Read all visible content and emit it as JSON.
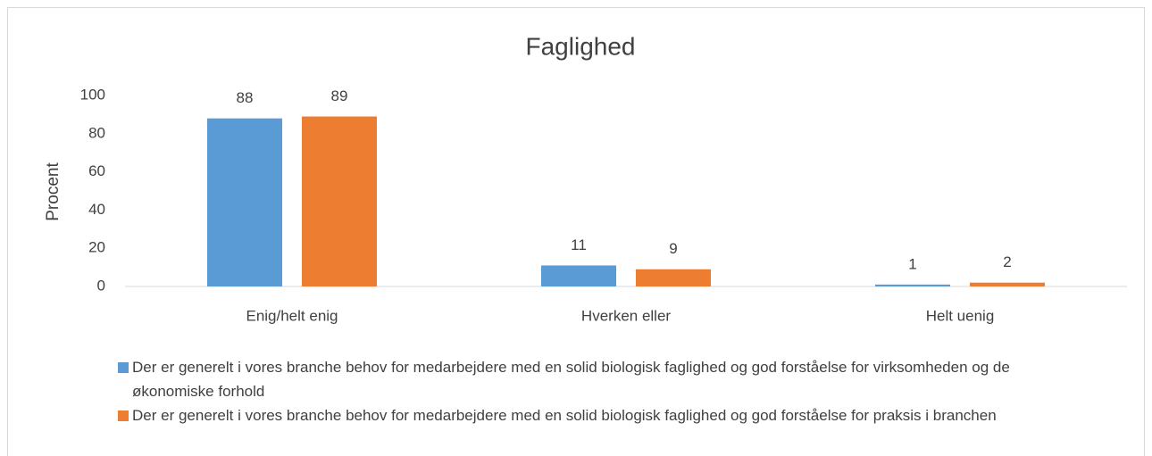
{
  "chart_data": {
    "type": "bar",
    "title": "Faglighed",
    "y_label": "Procent",
    "categories": [
      "Enig/helt enig",
      "Hverken eller",
      "Helt uenig"
    ],
    "series": [
      {
        "name": "Der er generelt i vores branche behov for medarbejdere med en solid biologisk faglighed og god forståelse for virksomheden og de økonomiske forhold",
        "color": "#5b9bd5",
        "values": [
          88,
          11,
          1
        ]
      },
      {
        "name": "Der er generelt i vores branche behov for medarbejdere med en solid biologisk faglighed og god forståelse for praksis i branchen",
        "color": "#ed7d31",
        "values": [
          89,
          9,
          2
        ]
      }
    ],
    "ylim": [
      0,
      100
    ],
    "yticks": [
      0,
      20,
      40,
      60,
      80,
      100
    ],
    "grid": false,
    "legend": "bottom"
  }
}
